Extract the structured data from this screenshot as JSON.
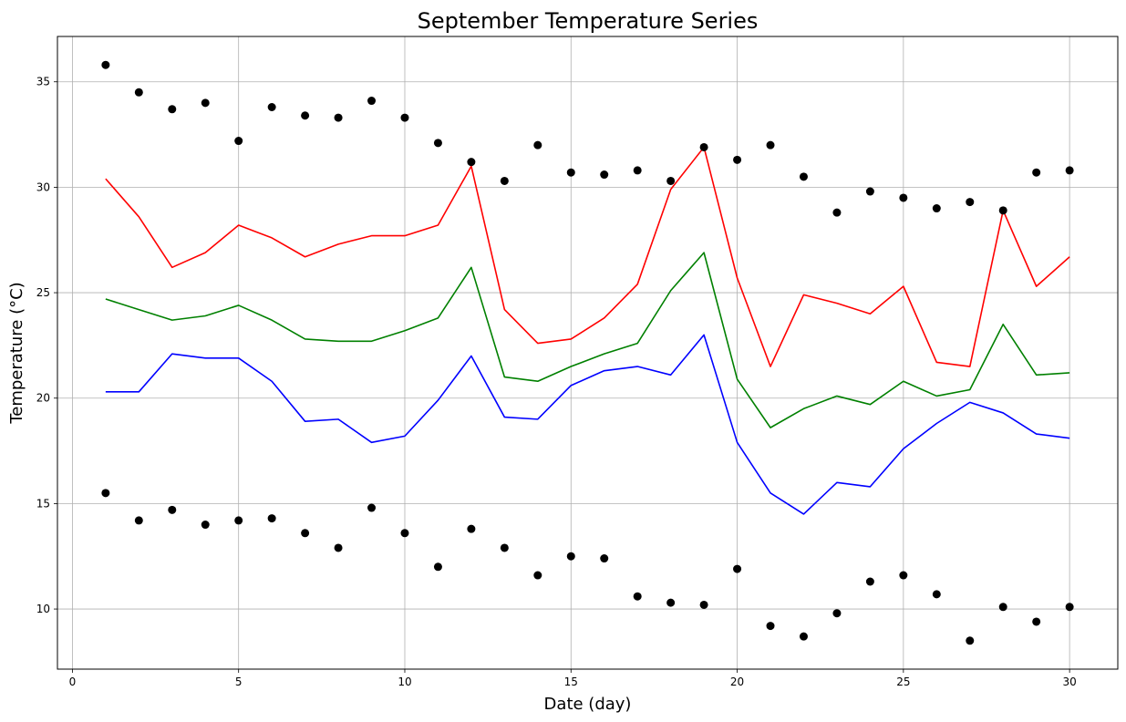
{
  "chart_data": {
    "type": "line",
    "title": "September Temperature Series",
    "xlabel": "Date (day)",
    "ylabel": "Temperature (°C)",
    "xlim": [
      -0.45,
      31.45
    ],
    "ylim": [
      7.15,
      37.15
    ],
    "xticks": [
      0,
      5,
      10,
      15,
      20,
      25,
      30
    ],
    "yticks": [
      10,
      15,
      20,
      25,
      30,
      35
    ],
    "grid": true,
    "legend": "none",
    "x": [
      1,
      2,
      3,
      4,
      5,
      6,
      7,
      8,
      9,
      10,
      11,
      12,
      13,
      14,
      15,
      16,
      17,
      18,
      19,
      20,
      21,
      22,
      23,
      24,
      25,
      26,
      27,
      28,
      29,
      30
    ],
    "series": [
      {
        "kind": "line",
        "color": "#ff0000",
        "values": [
          30.4,
          28.6,
          26.2,
          26.9,
          28.2,
          27.6,
          26.7,
          27.3,
          27.7,
          27.7,
          28.2,
          31.0,
          24.2,
          22.6,
          22.8,
          23.8,
          25.4,
          29.9,
          31.9,
          25.7,
          21.5,
          24.9,
          24.5,
          24.0,
          25.3,
          21.7,
          21.5,
          28.9,
          25.3,
          26.7
        ]
      },
      {
        "kind": "line",
        "color": "#008000",
        "values": [
          24.7,
          24.2,
          23.7,
          23.9,
          24.4,
          23.7,
          22.8,
          22.7,
          22.7,
          23.2,
          23.8,
          26.2,
          21.0,
          20.8,
          21.5,
          22.1,
          22.6,
          25.1,
          26.9,
          20.9,
          18.6,
          19.5,
          20.1,
          19.7,
          20.8,
          20.1,
          20.4,
          23.5,
          21.1,
          21.2
        ]
      },
      {
        "kind": "line",
        "color": "#0000ff",
        "values": [
          20.3,
          20.3,
          22.1,
          21.9,
          21.9,
          20.8,
          18.9,
          19.0,
          17.9,
          18.2,
          19.9,
          22.0,
          19.1,
          19.0,
          20.6,
          21.3,
          21.5,
          21.1,
          23.0,
          17.9,
          15.5,
          14.5,
          16.0,
          15.8,
          17.6,
          18.8,
          19.8,
          19.3,
          18.3,
          18.1
        ]
      },
      {
        "kind": "scatter",
        "color": "#000000",
        "values": [
          35.8,
          34.5,
          33.7,
          34.0,
          32.2,
          33.8,
          33.4,
          33.3,
          34.1,
          33.3,
          32.1,
          31.2,
          30.3,
          32.0,
          30.7,
          30.6,
          30.8,
          30.3,
          31.9,
          31.3,
          32.0,
          30.5,
          28.8,
          29.8,
          29.5,
          29.0,
          29.3,
          28.9,
          30.7,
          30.8
        ]
      },
      {
        "kind": "scatter",
        "color": "#000000",
        "values": [
          15.5,
          14.2,
          14.7,
          14.0,
          14.2,
          14.3,
          13.6,
          12.9,
          14.8,
          13.6,
          12.0,
          13.8,
          12.9,
          11.6,
          12.5,
          12.4,
          10.6,
          10.3,
          10.2,
          11.9,
          9.2,
          8.7,
          9.8,
          11.3,
          11.6,
          10.7,
          8.5,
          10.1,
          9.4,
          10.1
        ]
      }
    ]
  }
}
